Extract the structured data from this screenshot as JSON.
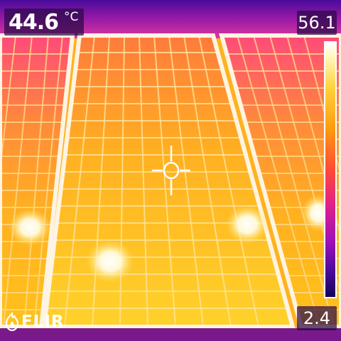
{
  "readout": {
    "value": "44.6",
    "unit": "°C",
    "crosshair": "crosshair-spot-meter"
  },
  "scale": {
    "max_label": "56.1",
    "min_label": "2.4",
    "palette": [
      "#ffffff",
      "#fff7b8",
      "#ffd23a",
      "#ff9a10",
      "#ff4a36",
      "#e0208a",
      "#a010b8",
      "#4a0a9a",
      "#12035a"
    ]
  },
  "brand": {
    "text": "FLIR",
    "icon": "flir-flame-icon"
  },
  "colors": {
    "panel_base": "#ff9a18",
    "panel_grid": "#ffd470",
    "frame": "#fff6ec",
    "hotspot": "#ffffff",
    "sky": "#c8328a",
    "overlay_bg": "#28104a"
  }
}
